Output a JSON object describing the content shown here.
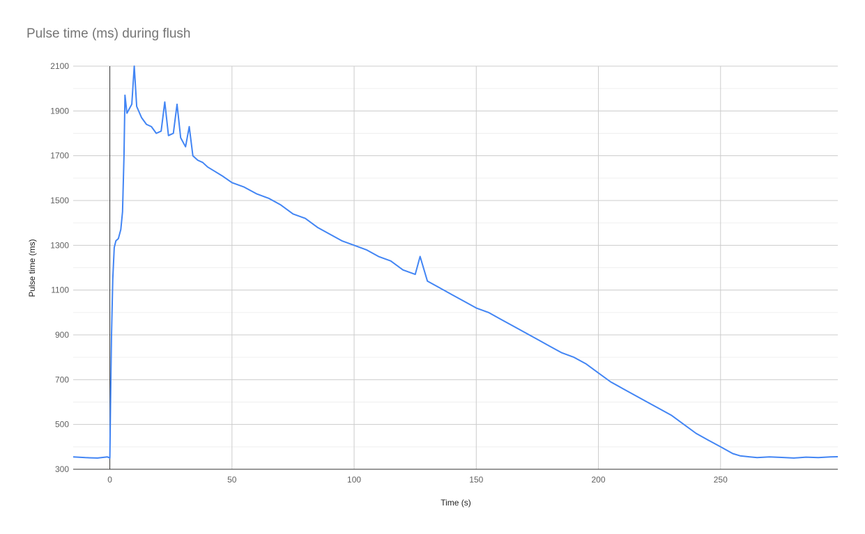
{
  "chart_data": {
    "type": "line",
    "title": "Pulse time (ms) during flush",
    "xlabel": "Time (s)",
    "ylabel": "Pulse time (ms)",
    "xlim": [
      -15,
      298
    ],
    "ylim": [
      300,
      2100
    ],
    "x_ticks": [
      0,
      50,
      100,
      150,
      200,
      250
    ],
    "y_ticks": [
      300,
      500,
      700,
      900,
      1100,
      1300,
      1500,
      1700,
      1900,
      2100
    ],
    "grid": true,
    "legend": "none",
    "series": [
      {
        "color": "#4285f4",
        "points": [
          [
            -15,
            355
          ],
          [
            -10,
            352
          ],
          [
            -5,
            350
          ],
          [
            -1,
            355
          ],
          [
            0,
            350
          ],
          [
            0.3,
            600
          ],
          [
            0.7,
            900
          ],
          [
            1.2,
            1150
          ],
          [
            1.8,
            1290
          ],
          [
            2.5,
            1320
          ],
          [
            3.5,
            1330
          ],
          [
            4.5,
            1370
          ],
          [
            5.2,
            1450
          ],
          [
            5.8,
            1700
          ],
          [
            6.2,
            1970
          ],
          [
            7,
            1890
          ],
          [
            8,
            1910
          ],
          [
            9,
            1930
          ],
          [
            10,
            2100
          ],
          [
            11,
            1920
          ],
          [
            13,
            1870
          ],
          [
            15,
            1840
          ],
          [
            17,
            1830
          ],
          [
            19,
            1800
          ],
          [
            21,
            1810
          ],
          [
            22.5,
            1940
          ],
          [
            24,
            1790
          ],
          [
            26,
            1800
          ],
          [
            27.5,
            1930
          ],
          [
            29,
            1780
          ],
          [
            31,
            1740
          ],
          [
            32.5,
            1830
          ],
          [
            34,
            1700
          ],
          [
            36,
            1680
          ],
          [
            38,
            1670
          ],
          [
            40,
            1650
          ],
          [
            43,
            1630
          ],
          [
            46,
            1610
          ],
          [
            50,
            1580
          ],
          [
            55,
            1560
          ],
          [
            60,
            1530
          ],
          [
            65,
            1510
          ],
          [
            70,
            1480
          ],
          [
            75,
            1440
          ],
          [
            80,
            1420
          ],
          [
            85,
            1380
          ],
          [
            90,
            1350
          ],
          [
            95,
            1320
          ],
          [
            100,
            1300
          ],
          [
            105,
            1280
          ],
          [
            110,
            1250
          ],
          [
            115,
            1230
          ],
          [
            120,
            1190
          ],
          [
            125,
            1170
          ],
          [
            127,
            1250
          ],
          [
            130,
            1140
          ],
          [
            135,
            1110
          ],
          [
            140,
            1080
          ],
          [
            145,
            1050
          ],
          [
            150,
            1020
          ],
          [
            155,
            1000
          ],
          [
            160,
            970
          ],
          [
            165,
            940
          ],
          [
            170,
            910
          ],
          [
            175,
            880
          ],
          [
            180,
            850
          ],
          [
            185,
            820
          ],
          [
            190,
            800
          ],
          [
            195,
            770
          ],
          [
            200,
            730
          ],
          [
            205,
            690
          ],
          [
            210,
            660
          ],
          [
            215,
            630
          ],
          [
            220,
            600
          ],
          [
            225,
            570
          ],
          [
            230,
            540
          ],
          [
            235,
            500
          ],
          [
            240,
            460
          ],
          [
            245,
            430
          ],
          [
            250,
            400
          ],
          [
            255,
            370
          ],
          [
            258,
            360
          ],
          [
            262,
            355
          ],
          [
            265,
            352
          ],
          [
            270,
            355
          ],
          [
            275,
            353
          ],
          [
            280,
            350
          ],
          [
            285,
            354
          ],
          [
            290,
            352
          ],
          [
            295,
            355
          ],
          [
            298,
            356
          ]
        ]
      }
    ]
  }
}
